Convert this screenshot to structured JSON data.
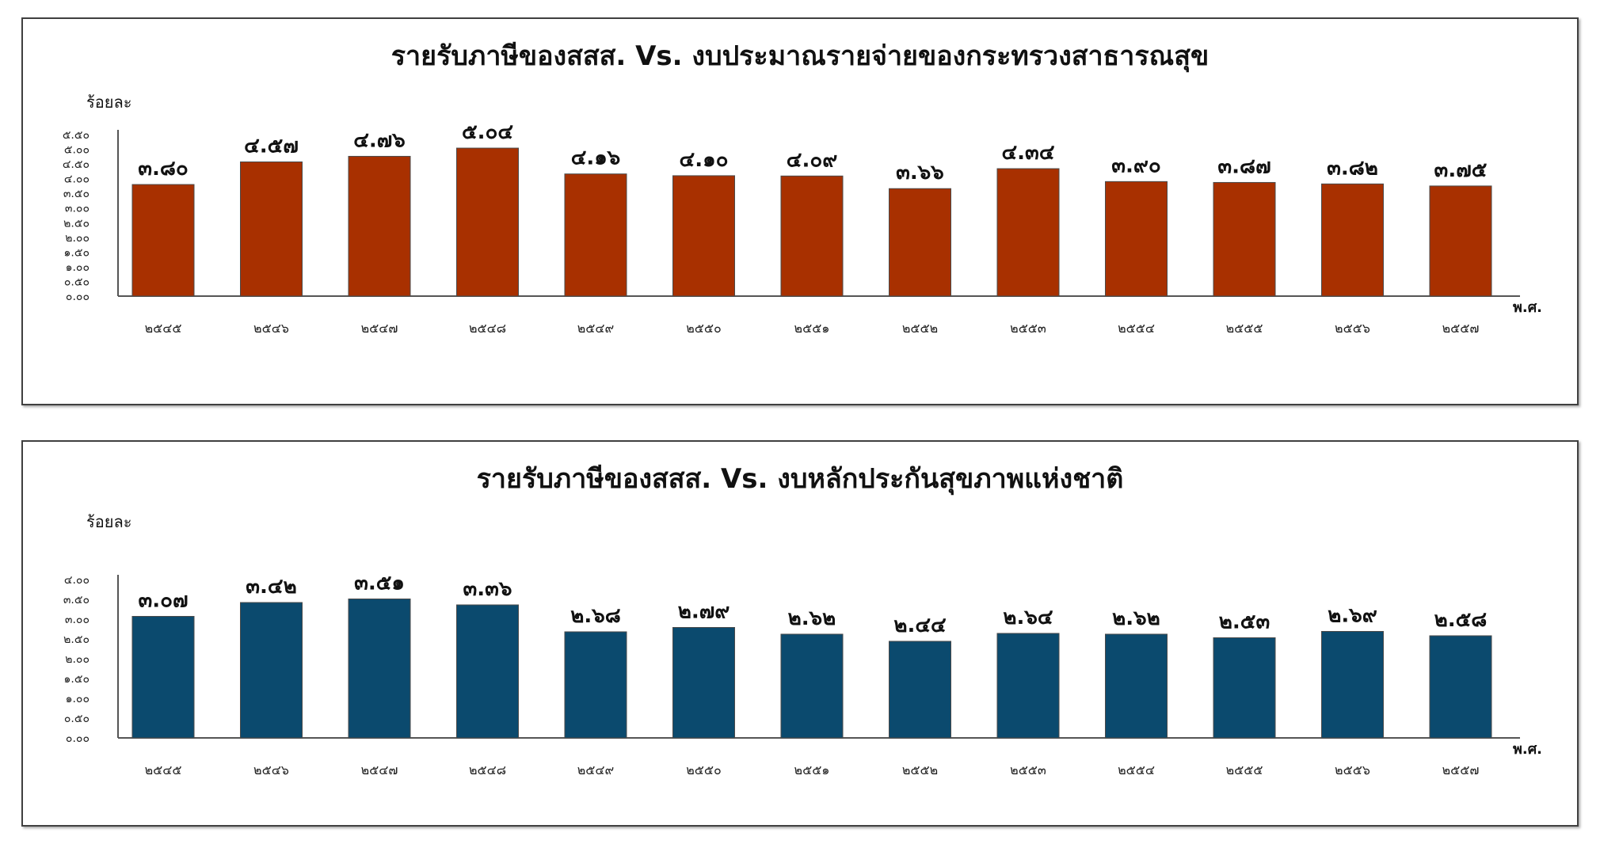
{
  "chart_data": [
    {
      "type": "bar",
      "title": "รายรับภาษีของสสส. Vs. งบประมาณรายจ่ายของกระทรวงสาธารณสุข",
      "ylabel": "ร้อยละ",
      "xlabel": "พ.ศ.",
      "ylim": [
        0,
        5.5
      ],
      "yticks": [
        "๐.๐๐",
        "๐.๕๐",
        "๑.๐๐",
        "๑.๕๐",
        "๒.๐๐",
        "๒.๕๐",
        "๓.๐๐",
        "๓.๕๐",
        "๔.๐๐",
        "๔.๕๐",
        "๕.๐๐",
        "๕.๕๐"
      ],
      "ytick_values": [
        0,
        0.5,
        1,
        1.5,
        2,
        2.5,
        3,
        3.5,
        4,
        4.5,
        5,
        5.5
      ],
      "categories": [
        "๒๕๔๕",
        "๒๕๔๖",
        "๒๕๔๗",
        "๒๕๔๘",
        "๒๕๔๙",
        "๒๕๕๐",
        "๒๕๕๑",
        "๒๕๕๒",
        "๒๕๕๓",
        "๒๕๕๔",
        "๒๕๕๕",
        "๒๕๕๖",
        "๒๕๕๗"
      ],
      "values": [
        3.8,
        4.57,
        4.76,
        5.04,
        4.16,
        4.1,
        4.09,
        3.66,
        4.34,
        3.9,
        3.87,
        3.82,
        3.75
      ],
      "data_labels": [
        "๓.๘๐",
        "๔.๕๗",
        "๔.๗๖",
        "๕.๐๔",
        "๔.๑๖",
        "๔.๑๐",
        "๔.๐๙",
        "๓.๖๖",
        "๔.๓๔",
        "๓.๙๐",
        "๓.๘๗",
        "๓.๘๒",
        "๓.๗๕"
      ],
      "bar_color": "#a83000",
      "grid": false
    },
    {
      "type": "bar",
      "title": "รายรับภาษีของสสส. Vs. งบหลักประกันสุขภาพแห่งชาติ",
      "ylabel": "ร้อยละ",
      "xlabel": "พ.ศ.",
      "ylim": [
        0,
        4
      ],
      "yticks": [
        "๐.๐๐",
        "๐.๕๐",
        "๑.๐๐",
        "๑.๕๐",
        "๒.๐๐",
        "๒.๕๐",
        "๓.๐๐",
        "๓.๕๐",
        "๔.๐๐"
      ],
      "ytick_values": [
        0,
        0.5,
        1,
        1.5,
        2,
        2.5,
        3,
        3.5,
        4
      ],
      "categories": [
        "๒๕๔๕",
        "๒๕๔๖",
        "๒๕๔๗",
        "๒๕๔๘",
        "๒๕๔๙",
        "๒๕๕๐",
        "๒๕๕๑",
        "๒๕๕๒",
        "๒๕๕๓",
        "๒๕๕๔",
        "๒๕๕๕",
        "๒๕๕๖",
        "๒๕๕๗"
      ],
      "values": [
        3.07,
        3.42,
        3.51,
        3.36,
        2.68,
        2.79,
        2.62,
        2.44,
        2.64,
        2.62,
        2.53,
        2.69,
        2.58
      ],
      "data_labels": [
        "๓.๐๗",
        "๓.๔๒",
        "๓.๕๑",
        "๓.๓๖",
        "๒.๖๘",
        "๒.๗๙",
        "๒.๖๒",
        "๒.๔๔",
        "๒.๖๔",
        "๒.๖๒",
        "๒.๕๓",
        "๒.๖๙",
        "๒.๕๘"
      ],
      "bar_color": "#0b4a6e",
      "grid": false
    }
  ]
}
